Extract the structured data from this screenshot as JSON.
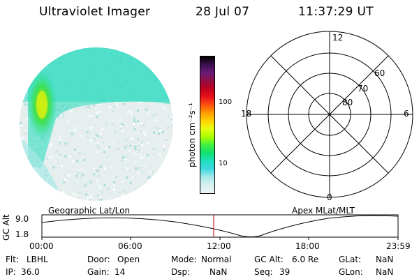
{
  "header": {
    "title": "Ultraviolet Imager",
    "date": "28 Jul 07",
    "time": "11:37:29 UT"
  },
  "colorbar": {
    "unit_label": "photon cm⁻²s⁻¹",
    "ticks": [
      "100",
      "10"
    ],
    "colors": [
      "#000000",
      "#380f4e",
      "#6a1a78",
      "#8f0f45",
      "#c00020",
      "#e8101a",
      "#ff5010",
      "#ff9a00",
      "#ffd200",
      "#e8ff10",
      "#a8ff00",
      "#40f040",
      "#10e070",
      "#20e0c0",
      "#40d8e0",
      "#a8e8e8",
      "#d8f0f0",
      "#ecf4f4"
    ]
  },
  "polar": {
    "mlt_labels": {
      "top": "12",
      "left": "18",
      "right": "6",
      "bottom": "0"
    },
    "lat_labels": [
      "60",
      "70",
      "80"
    ]
  },
  "timeline": {
    "axis_label": "GC Alt",
    "y_ticks": [
      "9.0",
      "1.8"
    ],
    "left_title": "Geographic Lat/Lon",
    "right_title": "Apex MLat/MLT",
    "x_ticks": [
      "00:00",
      "06:00",
      "12:00",
      "18:00",
      "23:59"
    ],
    "marker_color": "#c00000"
  },
  "footer": {
    "row1": [
      {
        "label": "Flt:",
        "value": "LBHL"
      },
      {
        "label": "Door:",
        "value": "Open"
      },
      {
        "label": "Mode:",
        "value": "Normal"
      },
      {
        "label": "GC Alt:",
        "value": "6.0 Re"
      },
      {
        "label": "GLat:",
        "value": "NaN"
      }
    ],
    "row2": [
      {
        "label": "IP:",
        "value": "36.0"
      },
      {
        "label": "Gain:",
        "value": "14"
      },
      {
        "label": "Dsp:",
        "value": "NaN"
      },
      {
        "label": "Seq:",
        "value": "39"
      },
      {
        "label": "GLon:",
        "value": "NaN"
      }
    ]
  }
}
